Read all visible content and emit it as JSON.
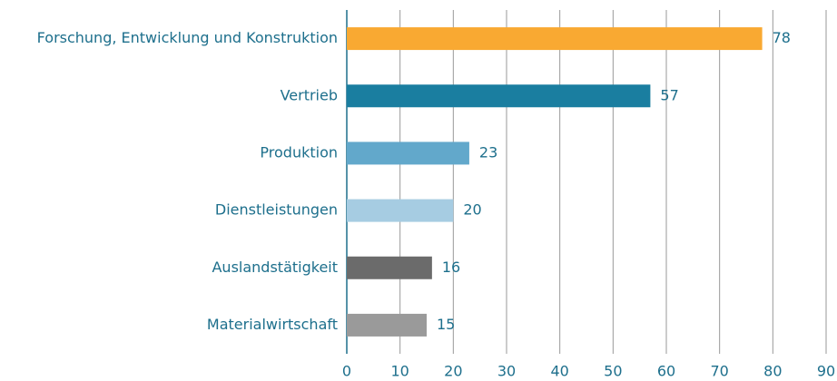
{
  "chart_data": {
    "type": "bar",
    "orientation": "horizontal",
    "categories": [
      "Forschung, Entwicklung und Konstruktion",
      "Vertrieb",
      "Produktion",
      "Dienstleistungen",
      "Auslandstätigkeit",
      "Materialwirtschaft"
    ],
    "values": [
      78,
      57,
      23,
      20,
      16,
      15
    ],
    "colors": [
      "#f9a932",
      "#1a7ea0",
      "#62a8cb",
      "#a6cce2",
      "#6b6b6b",
      "#9a9a9a"
    ],
    "xlim": [
      0,
      90
    ],
    "xticks": [
      0,
      10,
      20,
      30,
      40,
      50,
      60,
      70,
      80,
      90
    ],
    "grid": true
  }
}
